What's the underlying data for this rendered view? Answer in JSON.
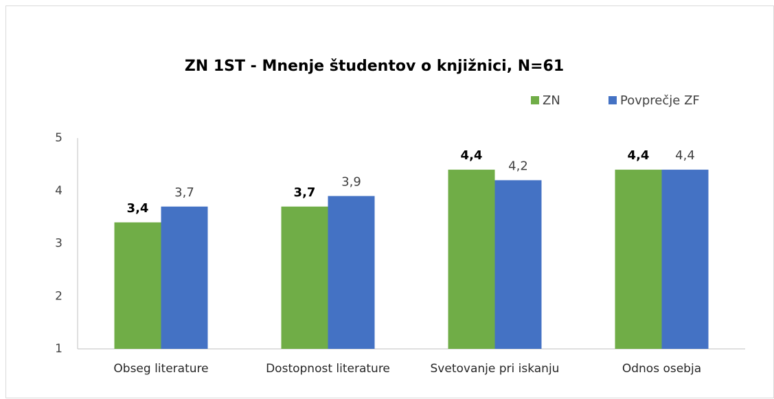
{
  "chart_data": {
    "type": "bar",
    "title": "ZN 1ST - Mnenje študentov o knjižnici, N=61",
    "categories": [
      "Obseg literature",
      "Dostopnost literature",
      "Svetovanje pri iskanju",
      "Odnos osebja"
    ],
    "series": [
      {
        "name": "ZN",
        "color": "#70ad47",
        "values": [
          3.4,
          3.7,
          4.4,
          4.4
        ],
        "value_labels": [
          "3,4",
          "3,7",
          "4,4",
          "4,4"
        ]
      },
      {
        "name": "Povprečje ZF",
        "color": "#4472c4",
        "values": [
          3.7,
          3.9,
          4.2,
          4.4
        ],
        "value_labels": [
          "3,7",
          "3,9",
          "4,2",
          "4,4"
        ]
      }
    ],
    "ylim": [
      1,
      5
    ],
    "yticks": [
      1,
      2,
      3,
      4,
      5
    ],
    "grid": false
  }
}
